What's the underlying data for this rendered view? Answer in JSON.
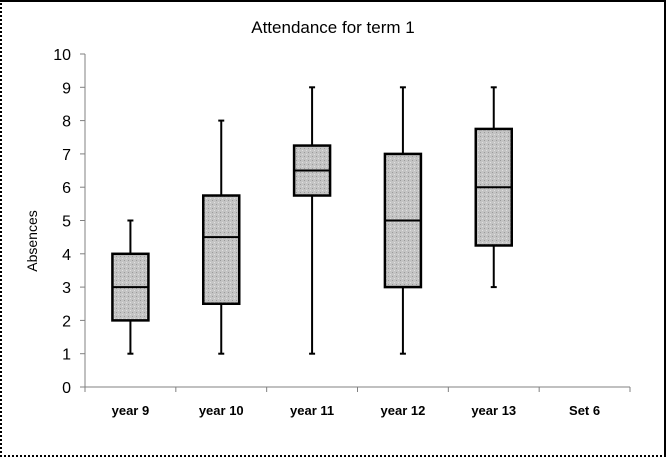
{
  "chart_data": {
    "type": "box",
    "title": "Attendance for term 1",
    "xlabel": "",
    "ylabel": "Absences",
    "ylim": [
      0,
      10
    ],
    "yticks": [
      0,
      1,
      2,
      3,
      4,
      5,
      6,
      7,
      8,
      9,
      10
    ],
    "grid": false,
    "legend": "none",
    "categories": [
      "year 9",
      "year 10",
      "year 11",
      "year 12",
      "year 13",
      "Set 6"
    ],
    "series": [
      {
        "category": "year 9",
        "min": 1,
        "q1": 2,
        "median": 3,
        "q3": 4,
        "max": 5
      },
      {
        "category": "year 10",
        "min": 1,
        "q1": 2.5,
        "median": 4.5,
        "q3": 5.75,
        "max": 8
      },
      {
        "category": "year 11",
        "min": 1,
        "q1": 5.75,
        "median": 6.5,
        "q3": 7.25,
        "max": 9
      },
      {
        "category": "year 12",
        "min": 1,
        "q1": 3,
        "median": 5,
        "q3": 7,
        "max": 9
      },
      {
        "category": "year 13",
        "min": 3,
        "q1": 4.25,
        "median": 6,
        "q3": 7.75,
        "max": 9
      },
      {
        "category": "Set 6",
        "min": null,
        "q1": null,
        "median": null,
        "q3": null,
        "max": null
      }
    ],
    "colors": {
      "box_fill": "#c8c8c8",
      "box_stroke": "#000000",
      "axis": "#808080"
    }
  }
}
